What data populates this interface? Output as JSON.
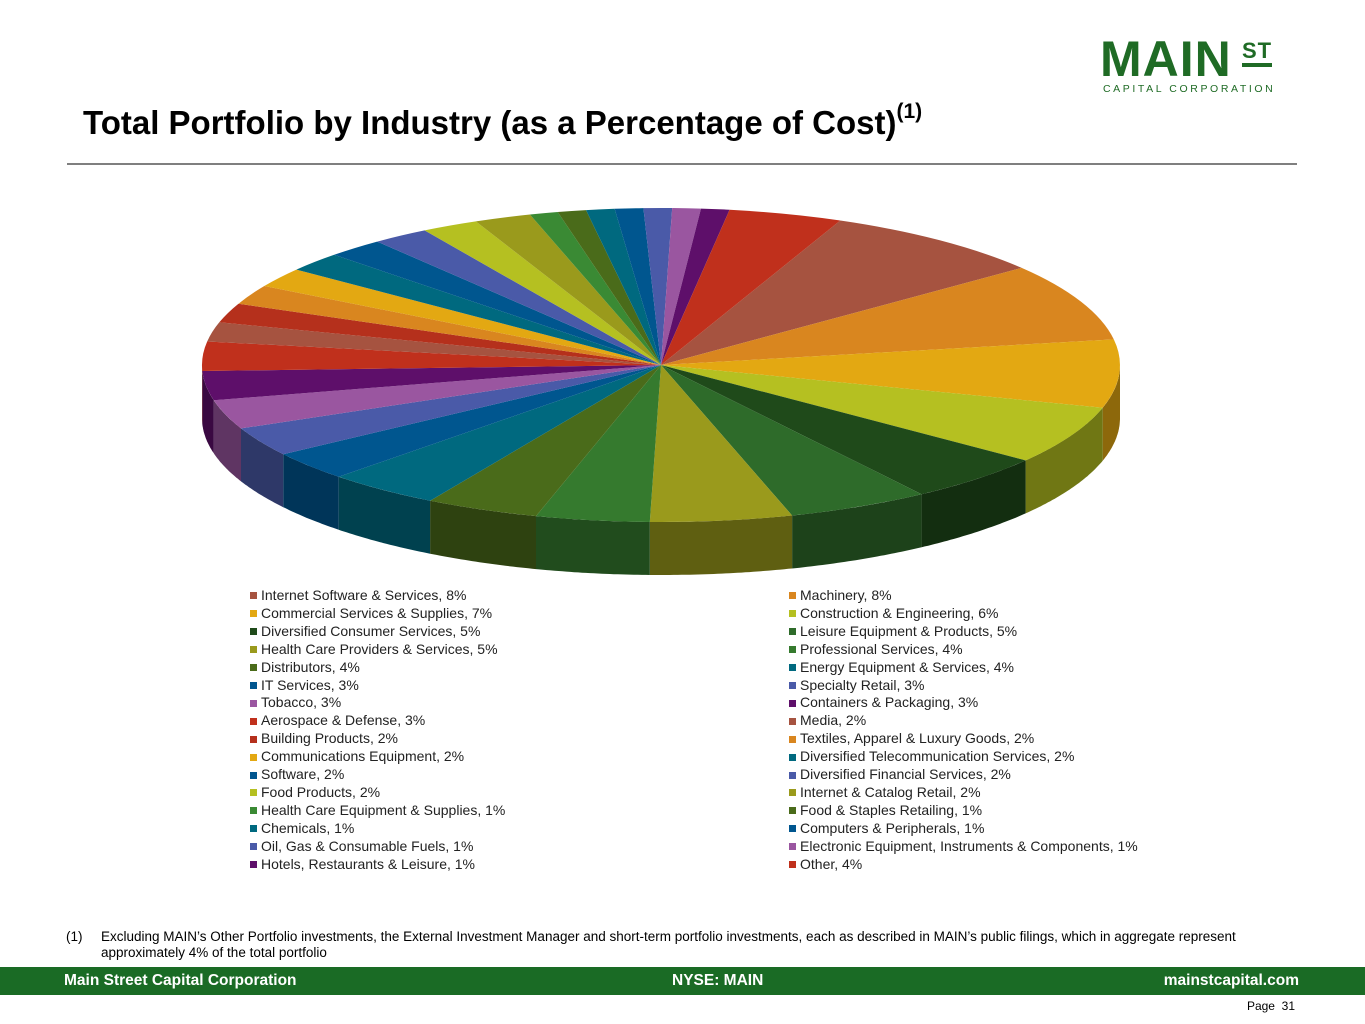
{
  "logo": {
    "main": "MAIN",
    "st": "ST",
    "sub": "CAPITAL CORPORATION"
  },
  "header": {
    "title": "Total Portfolio by Industry (as a Percentage of Cost)",
    "title_note": "(1)"
  },
  "chart_data": {
    "type": "pie",
    "style": "3d",
    "title": "Total Portfolio by Industry (as a Percentage of Cost)",
    "legend_position": "bottom",
    "categories": [
      "Internet Software & Services",
      "Machinery",
      "Commercial Services & Supplies",
      "Construction & Engineering",
      "Diversified Consumer Services",
      "Leisure Equipment & Products",
      "Health Care Providers & Services",
      "Professional Services",
      "Distributors",
      "Energy Equipment & Services",
      "IT Services",
      "Specialty Retail",
      "Tobacco",
      "Containers & Packaging",
      "Aerospace & Defense",
      "Media",
      "Building Products",
      "Textiles, Apparel & Luxury Goods",
      "Communications Equipment",
      "Diversified Telecommunication Services",
      "Software",
      "Diversified Financial Services",
      "Food Products",
      "Internet & Catalog Retail",
      "Health Care Equipment & Supplies",
      "Food & Staples Retailing",
      "Chemicals",
      "Computers & Peripherals",
      "Oil, Gas & Consumable Fuels",
      "Electronic Equipment, Instruments & Components",
      "Hotels, Restaurants & Leisure",
      "Other"
    ],
    "values": [
      8,
      8,
      7,
      6,
      5,
      5,
      5,
      4,
      4,
      4,
      3,
      3,
      3,
      3,
      3,
      2,
      2,
      2,
      2,
      2,
      2,
      2,
      2,
      2,
      1,
      1,
      1,
      1,
      1,
      1,
      1,
      4
    ],
    "labels": [
      "Internet Software & Services, 8%",
      "Machinery, 8%",
      "Commercial Services & Supplies, 7%",
      "Construction & Engineering, 6%",
      "Diversified Consumer Services, 5%",
      "Leisure Equipment & Products, 5%",
      "Health Care Providers & Services, 5%",
      "Professional Services, 4%",
      "Distributors, 4%",
      "Energy Equipment & Services, 4%",
      "IT Services, 3%",
      "Specialty Retail, 3%",
      "Tobacco, 3%",
      "Containers & Packaging, 3%",
      "Aerospace & Defense, 3%",
      "Media, 2%",
      "Building Products, 2%",
      "Textiles, Apparel & Luxury Goods, 2%",
      "Communications Equipment, 2%",
      "Diversified Telecommunication Services, 2%",
      "Software, 2%",
      "Diversified Financial Services, 2%",
      "Food Products, 2%",
      "Internet & Catalog Retail, 2%",
      "Health Care Equipment & Supplies, 1%",
      "Food & Staples Retailing, 1%",
      "Chemicals, 1%",
      "Computers & Peripherals, 1%",
      "Oil, Gas & Consumable Fuels, 1%",
      "Electronic Equipment, Instruments & Components, 1%",
      "Hotels, Restaurants & Leisure, 1%",
      "Other, 4%"
    ],
    "colors": [
      "#a65340",
      "#d9861f",
      "#e3a812",
      "#b5c021",
      "#1f4a1a",
      "#2e6b2a",
      "#9a9a1c",
      "#357a2e",
      "#4a6b1a",
      "#00697f",
      "#00568f",
      "#4a5aa8",
      "#9a56a0",
      "#5e0f6a",
      "#c0301c",
      "#a65340",
      "#b5301c",
      "#d9861f",
      "#e3a812",
      "#00697f",
      "#00568f",
      "#4a5aa8",
      "#b5c021",
      "#9a9a1c",
      "#3a8a34",
      "#4a6b1a",
      "#00697f",
      "#00568f",
      "#4a5aa8",
      "#9a56a0",
      "#5e0f6a",
      "#c0301c"
    ],
    "start_angle_deg": 23
  },
  "footnote": {
    "number": "(1)",
    "text": "Excluding MAIN’s Other Portfolio investments, the External Investment Manager and short-term portfolio investments, each as described in MAIN’s public filings, which in aggregate represent approximately 4% of the total portfolio"
  },
  "footer": {
    "company": "Main Street Capital Corporation",
    "ticker": "NYSE: MAIN",
    "website": "mainstcapital.com",
    "brand_color": "#1a6b25"
  },
  "page": {
    "label": "Page",
    "number": "31"
  }
}
